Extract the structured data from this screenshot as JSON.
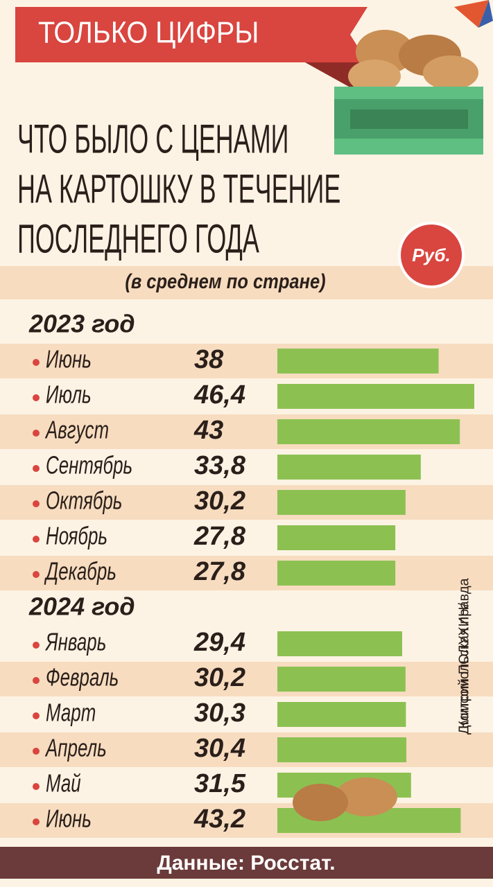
{
  "chart_data": {
    "type": "bar",
    "badge": "ТОЛЬКО ЦИФРЫ",
    "title": [
      "ЧТО БЫЛО С ЦЕНАМИ",
      "НА КАРТОШКУ В ТЕЧЕНИЕ",
      "ПОСЛЕДНЕГО ГОДА"
    ],
    "subtitle": "(в среднем по стране)",
    "unit": "Руб.",
    "color": "#8cc152",
    "groups": [
      {
        "label": "2023 год",
        "categories": [
          "Июнь",
          "Июль",
          "Август",
          "Сентябрь",
          "Октябрь",
          "Ноябрь",
          "Декабрь"
        ],
        "values": [
          38,
          46.4,
          43,
          33.8,
          30.2,
          27.8,
          27.8
        ],
        "value_labels": [
          "38",
          "46,4",
          "43",
          "33,8",
          "30,2",
          "27,8",
          "27,8"
        ]
      },
      {
        "label": "2024 год",
        "categories": [
          "Январь",
          "Февраль",
          "Март",
          "Апрель",
          "Май",
          "Июнь"
        ],
        "values": [
          29.4,
          30.2,
          30.3,
          30.4,
          31.5,
          43.2
        ],
        "value_labels": [
          "29,4",
          "30,2",
          "30,3",
          "30,4",
          "31,5",
          "43,2"
        ]
      }
    ],
    "credit": [
      "Дмитрий ПОЛУХИН/",
      "Комсомольская правда"
    ],
    "source": "Данные: Росстат."
  }
}
